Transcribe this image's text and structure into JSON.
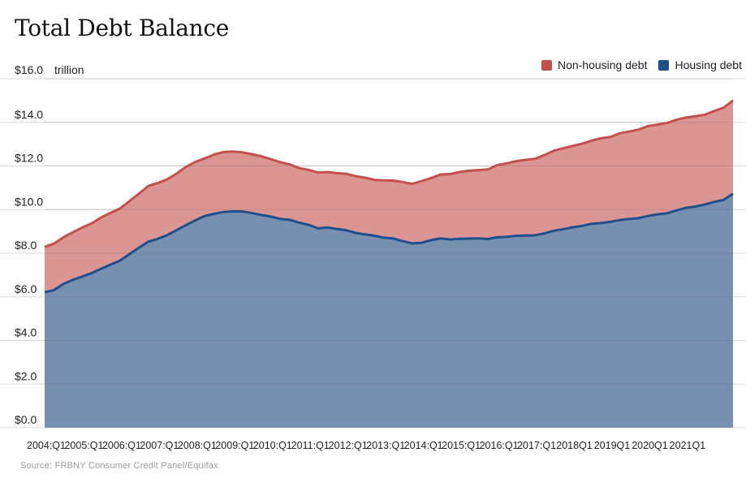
{
  "chart_data": {
    "type": "area",
    "title": "Total Debt Balance",
    "ylabel_unit": "trillion",
    "ylim": [
      0,
      16
    ],
    "y_ticks": [
      "$0.0",
      "$2.0",
      "$4.0",
      "$6.0",
      "$8.0",
      "$10.0",
      "$12.0",
      "$14.0",
      "$16.0"
    ],
    "x_tick_labels": [
      "2004:Q1",
      "2005:Q1",
      "2006:Q1",
      "2007:Q1",
      "2008:Q1",
      "2009:Q1",
      "2010:Q1",
      "2011:Q1",
      "2012:Q1",
      "2013:Q1",
      "2014:Q1",
      "2015:Q1",
      "2016:Q1",
      "2017:Q1",
      "2018Q1",
      "2019Q1",
      "2020Q1",
      "2021Q1"
    ],
    "stacked": true,
    "series": [
      {
        "name": "Housing debt",
        "color": "#1f4e8c",
        "fill": "#7890b0",
        "values": [
          6.21,
          6.31,
          6.59,
          6.78,
          6.93,
          7.09,
          7.29,
          7.48,
          7.66,
          7.96,
          8.25,
          8.53,
          8.66,
          8.83,
          9.06,
          9.29,
          9.51,
          9.71,
          9.81,
          9.89,
          9.92,
          9.91,
          9.84,
          9.75,
          9.68,
          9.57,
          9.53,
          9.4,
          9.3,
          9.14,
          9.18,
          9.11,
          9.05,
          8.93,
          8.86,
          8.8,
          8.71,
          8.67,
          8.55,
          8.45,
          8.48,
          8.6,
          8.68,
          8.63,
          8.66,
          8.67,
          8.68,
          8.65,
          8.73,
          8.75,
          8.8,
          8.81,
          8.82,
          8.91,
          9.03,
          9.1,
          9.19,
          9.25,
          9.35,
          9.38,
          9.44,
          9.52,
          9.57,
          9.61,
          9.71,
          9.78,
          9.83,
          9.96,
          10.08,
          10.14,
          10.23,
          10.35,
          10.44,
          10.73
        ]
      },
      {
        "name": "Non-housing debt",
        "color": "#c4504c",
        "fill": "#db9593",
        "values": [
          2.08,
          2.13,
          2.14,
          2.18,
          2.25,
          2.28,
          2.35,
          2.37,
          2.39,
          2.43,
          2.48,
          2.55,
          2.56,
          2.56,
          2.59,
          2.67,
          2.68,
          2.64,
          2.72,
          2.75,
          2.74,
          2.71,
          2.7,
          2.69,
          2.63,
          2.6,
          2.54,
          2.5,
          2.52,
          2.56,
          2.54,
          2.56,
          2.59,
          2.6,
          2.6,
          2.56,
          2.63,
          2.66,
          2.71,
          2.73,
          2.83,
          2.85,
          2.93,
          3.0,
          3.06,
          3.11,
          3.13,
          3.19,
          3.31,
          3.37,
          3.42,
          3.47,
          3.51,
          3.59,
          3.67,
          3.71,
          3.73,
          3.77,
          3.81,
          3.89,
          3.89,
          3.98,
          4.01,
          4.06,
          4.12,
          4.12,
          4.14,
          4.16,
          4.14,
          4.14,
          4.12,
          4.17,
          4.23,
          4.27
        ]
      }
    ],
    "legend_position": "top-right",
    "grid": true,
    "source": "Source: FRBNY Consumer Credit Panel/Equifax"
  }
}
